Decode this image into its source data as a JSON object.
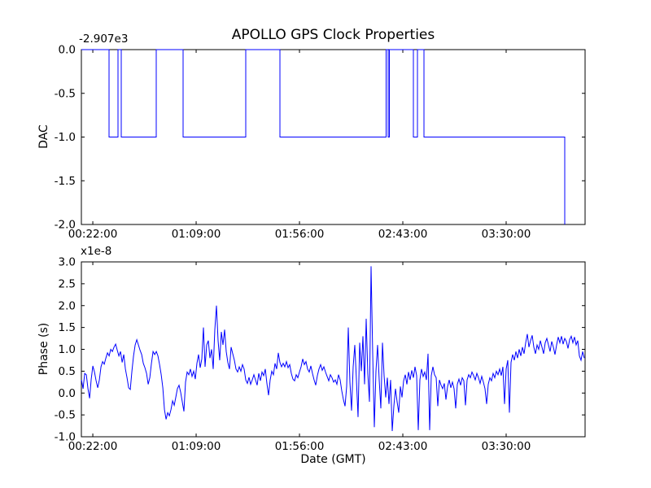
{
  "figure": {
    "background": "#ffffff",
    "spine_color": "#000000"
  },
  "chart_data": [
    {
      "type": "line",
      "name": "dac",
      "title": "APOLLO GPS Clock Properties",
      "ylabel": "DAC",
      "xlabel": "",
      "y_offset_text": "-2.907e3",
      "line_color": "#0000ff",
      "grid": false,
      "legend": null,
      "xlim": [
        16.8,
        245.9
      ],
      "ylim": [
        -2.0,
        0.0
      ],
      "x_ticks": [
        22,
        69,
        116,
        163,
        210
      ],
      "x_tick_labels": [
        "00:22:00",
        "01:09:00",
        "01:56:00",
        "02:43:00",
        "03:30:00"
      ],
      "y_ticks": [
        0.0,
        -0.5,
        -1.0,
        -1.5,
        -2.0
      ],
      "y_tick_labels": [
        "0.0",
        "-0.5",
        "-1.0",
        "-1.5",
        "-2.0"
      ],
      "series": [
        {
          "name": "dac-steps",
          "points": [
            [
              16.82,
              0
            ],
            [
              29.4,
              0
            ],
            [
              29.4,
              -1
            ],
            [
              33.47,
              -1
            ],
            [
              33.47,
              0
            ],
            [
              34.95,
              0
            ],
            [
              34.95,
              -1
            ],
            [
              50.86,
              -1
            ],
            [
              50.86,
              0
            ],
            [
              63.08,
              0
            ],
            [
              63.08,
              -1
            ],
            [
              91.57,
              -1
            ],
            [
              91.57,
              0
            ],
            [
              107.12,
              0
            ],
            [
              107.12,
              -1
            ],
            [
              155.4,
              -1
            ],
            [
              155.4,
              0
            ],
            [
              156.33,
              0
            ],
            [
              156.33,
              -1
            ],
            [
              156.88,
              -1
            ],
            [
              156.88,
              0
            ],
            [
              167.8,
              0
            ],
            [
              167.8,
              -1
            ],
            [
              169.65,
              -1
            ],
            [
              169.65,
              0
            ],
            [
              172.61,
              0
            ],
            [
              172.61,
              -1
            ],
            [
              236.63,
              -1
            ],
            [
              236.63,
              -2
            ]
          ]
        }
      ]
    },
    {
      "type": "line",
      "name": "phase",
      "title": "",
      "ylabel": "Phase (s)",
      "xlabel": "Date (GMT)",
      "y_offset_text": "x1e-8",
      "line_color": "#0000ff",
      "grid": false,
      "legend": null,
      "xlim": [
        16.8,
        245.9
      ],
      "ylim": [
        -1.0,
        3.0
      ],
      "x_ticks": [
        22,
        69,
        116,
        163,
        210
      ],
      "x_tick_labels": [
        "00:22:00",
        "01:09:00",
        "01:56:00",
        "02:43:00",
        "03:30:00"
      ],
      "y_ticks": [
        3.0,
        2.5,
        2.0,
        1.5,
        1.0,
        0.5,
        0.0,
        -0.5,
        -1.0
      ],
      "y_tick_labels": [
        "3.0",
        "2.5",
        "2.0",
        "1.5",
        "1.0",
        "0.5",
        "0.0",
        "-0.5",
        "-1.0"
      ],
      "series": [
        {
          "name": "phase-trace",
          "t_start": 16.82,
          "t_step": 0.7402,
          "values": [
            0.3,
            0.1,
            0.45,
            0.42,
            0.1,
            -0.12,
            0.32,
            0.62,
            0.48,
            0.28,
            0.12,
            0.3,
            0.6,
            0.72,
            0.66,
            0.8,
            0.92,
            0.85,
            1.0,
            0.95,
            1.05,
            1.12,
            0.98,
            0.85,
            0.95,
            0.7,
            0.88,
            0.55,
            0.35,
            0.12,
            0.08,
            0.5,
            0.85,
            1.1,
            1.22,
            1.1,
            0.98,
            0.88,
            0.68,
            0.58,
            0.45,
            0.2,
            0.35,
            0.68,
            0.95,
            0.88,
            0.95,
            0.85,
            0.65,
            0.42,
            0.12,
            -0.38,
            -0.6,
            -0.45,
            -0.52,
            -0.38,
            -0.18,
            -0.28,
            -0.1,
            0.1,
            0.18,
            0.02,
            -0.2,
            -0.42,
            0.25,
            0.48,
            0.42,
            0.55,
            0.38,
            0.5,
            0.32,
            0.68,
            0.88,
            0.58,
            0.78,
            1.5,
            0.6,
            1.1,
            1.2,
            0.8,
            1.0,
            0.55,
            1.45,
            2.0,
            1.2,
            0.75,
            1.4,
            1.1,
            1.45,
            0.95,
            0.7,
            0.55,
            1.05,
            0.9,
            0.75,
            0.55,
            0.48,
            0.6,
            0.5,
            0.65,
            0.55,
            0.3,
            0.22,
            0.36,
            0.2,
            0.3,
            0.42,
            0.3,
            0.18,
            0.45,
            0.28,
            0.48,
            0.4,
            0.55,
            0.22,
            -0.05,
            0.3,
            0.5,
            0.42,
            0.68,
            0.55,
            0.92,
            0.7,
            0.6,
            0.68,
            0.6,
            0.72,
            0.58,
            0.65,
            0.45,
            0.32,
            0.28,
            0.42,
            0.35,
            0.48,
            0.6,
            0.78,
            0.65,
            0.72,
            0.55,
            0.48,
            0.62,
            0.45,
            0.3,
            0.18,
            0.4,
            0.55,
            0.65,
            0.52,
            0.6,
            0.48,
            0.38,
            0.28,
            0.42,
            0.35,
            0.25,
            0.3,
            0.2,
            0.42,
            0.3,
            0.05,
            -0.15,
            -0.3,
            0.15,
            1.5,
            0.25,
            -0.4,
            0.6,
            1.1,
            0.3,
            -0.55,
            1.15,
            0.5,
            1.3,
            0.2,
            1.7,
            0.45,
            -0.2,
            2.9,
            0.9,
            -0.78,
            0.5,
            1.1,
            0.3,
            -0.35,
            1.15,
            0.4,
            -0.1,
            0.35,
            -0.25,
            0.3,
            -0.87,
            -0.3,
            0.1,
            -0.2,
            -0.45,
            0.15,
            -0.1,
            0.28,
            0.42,
            0.2,
            0.48,
            0.3,
            0.52,
            0.35,
            0.6,
            0.4,
            -0.85,
            0.3,
            0.55,
            0.38,
            0.48,
            0.3,
            0.9,
            -0.85,
            0.4,
            0.6,
            0.42,
            0.35,
            -0.3,
            0.3,
            0.18,
            0.1,
            0.22,
            -0.15,
            0.15,
            0.3,
            0.12,
            0.25,
            0.1,
            -0.35,
            0.2,
            0.32,
            0.18,
            0.35,
            0.28,
            -0.28,
            0.3,
            0.42,
            0.35,
            0.48,
            0.4,
            0.3,
            0.45,
            0.35,
            0.22,
            0.38,
            0.25,
            0.1,
            -0.25,
            0.2,
            0.35,
            0.28,
            0.45,
            0.35,
            0.5,
            0.42,
            0.55,
            0.4,
            0.6,
            -0.25,
            0.55,
            0.75,
            -0.45,
            0.7,
            0.88,
            0.75,
            0.95,
            0.8,
            1.0,
            0.85,
            1.05,
            0.9,
            1.15,
            1.35,
            1.05,
            1.2,
            1.32,
            1.05,
            0.9,
            1.1,
            1.0,
            1.2,
            1.05,
            0.9,
            1.15,
            1.25,
            1.1,
            0.95,
            1.18,
            1.05,
            0.88,
            1.1,
            1.28,
            1.15,
            1.3,
            1.12,
            1.25,
            1.18,
            1.02,
            1.22,
            1.3,
            1.15,
            1.28,
            1.1,
            1.2,
            0.85,
            0.75,
            0.95,
            0.8
          ]
        }
      ]
    }
  ]
}
